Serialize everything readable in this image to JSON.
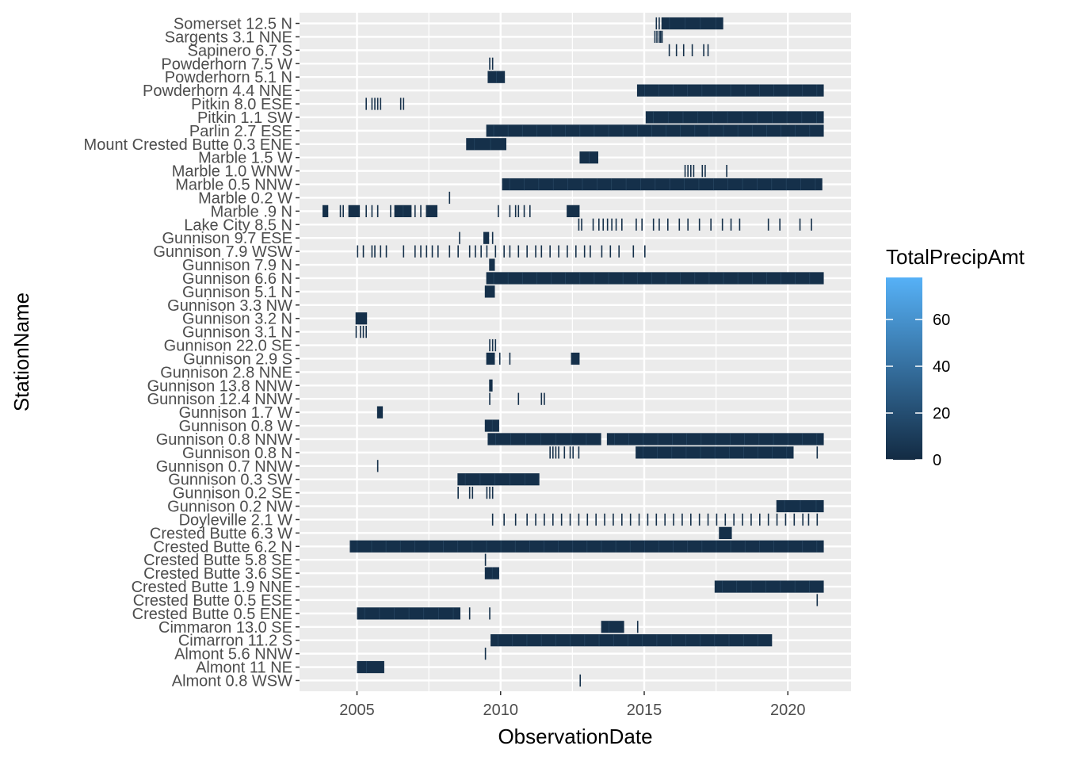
{
  "chart_data": {
    "type": "heatmap",
    "xlabel": "ObservationDate",
    "ylabel": "StationName",
    "xlim": [
      2003.0,
      2022.2
    ],
    "x_ticks": [
      2005,
      2010,
      2015,
      2020
    ],
    "x_tick_labels": [
      "2005",
      "2010",
      "2015",
      "2020"
    ],
    "grid": true,
    "legend": {
      "title": "TotalPrecipAmt",
      "position": "right",
      "range": [
        0,
        78
      ],
      "ticks": [
        0,
        20,
        40,
        60
      ],
      "tick_labels": [
        "0",
        "20",
        "40",
        "60"
      ],
      "color_low": "#132B43",
      "color_high": "#56B1F7"
    },
    "stations": [
      "Somerset 12.5 N",
      "Sargents 3.1 NNE",
      "Sapinero 6.7 S",
      "Powderhorn 7.5 W",
      "Powderhorn 5.1 N",
      "Powderhorn 4.4 NNE",
      "Pitkin 8.0 ESE",
      "Pitkin 1.1 SW",
      "Parlin 2.7 ESE",
      "Mount Crested Butte 0.3 ENE",
      "Marble 1.5 W",
      "Marble 1.0 WNW",
      "Marble 0.5 NNW",
      "Marble 0.2 W",
      "Marble .9 N",
      "Lake City 8.5 N",
      "Gunnison 9.7 ESE",
      "Gunnison 7.9 WSW",
      "Gunnison 7.9 N",
      "Gunnison 6.6 N",
      "Gunnison 5.1 N",
      "Gunnison 3.3 NW",
      "Gunnison 3.2 N",
      "Gunnison 3.1 N",
      "Gunnison 22.0 SE",
      "Gunnison 2.9 S",
      "Gunnison 2.8 NNE",
      "Gunnison 13.8 NNW",
      "Gunnison 12.4 NNW",
      "Gunnison 1.7 W",
      "Gunnison 0.8 W",
      "Gunnison 0.8 NNW",
      "Gunnison 0.8 N",
      "Gunnison 0.7 NNW",
      "Gunnison 0.3 SW",
      "Gunnison 0.2 SE",
      "Gunnison 0.2 NW",
      "Doyleville 2.1 W",
      "Crested Butte 6.3 W",
      "Crested Butte 6.2 N",
      "Crested Butte 5.8 SE",
      "Crested Butte 3.6 SE",
      "Crested Butte 1.9 NNE",
      "Crested Butte 0.5 ESE",
      "Crested Butte 0.5 ENE",
      "Cimmaron 13.0 SE",
      "Cimarron 11.2 S",
      "Almont 5.6 NNW",
      "Almont 11 NE",
      "Almont 0.8 WSW"
    ],
    "records": [
      {
        "station": "Somerset 12.5 N",
        "blocks": [
          [
            2015.6,
            2017.75
          ]
        ],
        "ticks": [
          2015.4,
          2015.5
        ]
      },
      {
        "station": "Sargents 3.1 NNE",
        "blocks": [],
        "ticks": [
          2015.35,
          2015.42,
          2015.5,
          2015.55,
          2015.6
        ]
      },
      {
        "station": "Sapinero 6.7 S",
        "blocks": [],
        "ticks": [
          2015.85,
          2016.1,
          2016.35,
          2016.65,
          2017.05,
          2017.2
        ]
      },
      {
        "station": "Powderhorn 7.5 W",
        "blocks": [],
        "ticks": [
          2009.6,
          2009.7
        ]
      },
      {
        "station": "Powderhorn 5.1 N",
        "blocks": [
          [
            2009.55,
            2010.15
          ]
        ],
        "ticks": []
      },
      {
        "station": "Powderhorn 4.4 NNE",
        "blocks": [
          [
            2014.75,
            2021.25
          ]
        ],
        "ticks": []
      },
      {
        "station": "Pitkin 8.0 ESE",
        "blocks": [],
        "ticks": [
          2005.3,
          2005.5,
          2005.6,
          2005.7,
          2005.8,
          2006.5,
          2006.6
        ]
      },
      {
        "station": "Pitkin 1.1 SW",
        "blocks": [
          [
            2015.05,
            2021.25
          ]
        ],
        "ticks": []
      },
      {
        "station": "Parlin 2.7 ESE",
        "blocks": [
          [
            2009.5,
            2021.25
          ]
        ],
        "ticks": []
      },
      {
        "station": "Mount Crested Butte 0.3 ENE",
        "blocks": [
          [
            2008.8,
            2010.2
          ]
        ],
        "ticks": []
      },
      {
        "station": "Marble 1.5 W",
        "blocks": [
          [
            2012.75,
            2013.4
          ]
        ],
        "ticks": []
      },
      {
        "station": "Marble 1.0 WNW",
        "blocks": [],
        "ticks": [
          2016.4,
          2016.5,
          2016.6,
          2016.7,
          2017.0,
          2017.1,
          2017.85
        ]
      },
      {
        "station": "Marble 0.5 NNW",
        "blocks": [
          [
            2010.05,
            2021.2
          ]
        ],
        "ticks": []
      },
      {
        "station": "Marble 0.2 W",
        "blocks": [],
        "ticks": [
          2008.2
        ]
      },
      {
        "station": "Marble .9 N",
        "blocks": [
          [
            2003.8,
            2004.0
          ],
          [
            2004.7,
            2005.1
          ],
          [
            2006.3,
            2006.9
          ],
          [
            2007.4,
            2007.8
          ],
          [
            2012.3,
            2012.75
          ]
        ],
        "ticks": [
          2004.4,
          2004.5,
          2005.3,
          2005.5,
          2005.7,
          2006.15,
          2007.0,
          2007.2,
          2009.9,
          2010.3,
          2010.5,
          2010.6,
          2010.8,
          2011.0
        ]
      },
      {
        "station": "Lake City 8.5 N",
        "blocks": [],
        "ticks": [
          2012.7,
          2012.8,
          2013.2,
          2013.4,
          2013.55,
          2013.7,
          2013.85,
          2014.0,
          2014.2,
          2014.7,
          2014.9,
          2015.3,
          2015.5,
          2015.8,
          2016.2,
          2016.5,
          2016.9,
          2017.3,
          2017.7,
          2018.0,
          2018.3,
          2019.3,
          2019.7,
          2020.4,
          2020.8
        ]
      },
      {
        "station": "Gunnison 9.7 ESE",
        "blocks": [
          [
            2009.4,
            2009.6
          ]
        ],
        "ticks": [
          2008.55,
          2009.7
        ]
      },
      {
        "station": "Gunnison 7.9 WSW",
        "blocks": [],
        "ticks": [
          2005.0,
          2005.2,
          2005.5,
          2005.6,
          2005.8,
          2006.0,
          2006.6,
          2007.0,
          2007.2,
          2007.4,
          2007.6,
          2007.8,
          2008.2,
          2008.5,
          2008.9,
          2009.1,
          2009.3,
          2009.5,
          2009.8,
          2010.1,
          2010.3,
          2010.6,
          2010.9,
          2011.2,
          2011.4,
          2011.7,
          2012.0,
          2012.3,
          2012.6,
          2012.9,
          2013.1,
          2013.5,
          2013.8,
          2014.1,
          2014.6,
          2015.0
        ]
      },
      {
        "station": "Gunnison 7.9 N",
        "blocks": [
          [
            2009.6,
            2009.8
          ]
        ],
        "ticks": []
      },
      {
        "station": "Gunnison 6.6 N",
        "blocks": [
          [
            2009.5,
            2021.25
          ]
        ],
        "ticks": []
      },
      {
        "station": "Gunnison 5.1 N",
        "blocks": [
          [
            2009.45,
            2009.8
          ]
        ],
        "ticks": []
      },
      {
        "station": "Gunnison 3.3 NW",
        "blocks": [],
        "ticks": []
      },
      {
        "station": "Gunnison 3.2 N",
        "blocks": [
          [
            2004.95,
            2005.35
          ]
        ],
        "ticks": []
      },
      {
        "station": "Gunnison 3.1 N",
        "blocks": [],
        "ticks": [
          2004.95,
          2005.1,
          2005.2,
          2005.3
        ]
      },
      {
        "station": "Gunnison 22.0 SE",
        "blocks": [],
        "ticks": [
          2009.6,
          2009.7,
          2009.8
        ]
      },
      {
        "station": "Gunnison 2.9 S",
        "blocks": [
          [
            2009.5,
            2009.8
          ],
          [
            2012.45,
            2012.75
          ]
        ],
        "ticks": [
          2009.95,
          2010.3
        ]
      },
      {
        "station": "Gunnison 2.8 NNE",
        "blocks": [],
        "ticks": []
      },
      {
        "station": "Gunnison 13.8 NNW",
        "blocks": [
          [
            2009.6,
            2009.72
          ]
        ],
        "ticks": []
      },
      {
        "station": "Gunnison 12.4 NNW",
        "blocks": [],
        "ticks": [
          2009.6,
          2010.6,
          2011.4,
          2011.5
        ]
      },
      {
        "station": "Gunnison 1.7 W",
        "blocks": [
          [
            2005.7,
            2005.9
          ]
        ],
        "ticks": []
      },
      {
        "station": "Gunnison 0.8 W",
        "blocks": [
          [
            2009.45,
            2009.95
          ]
        ],
        "ticks": []
      },
      {
        "station": "Gunnison 0.8 NNW",
        "blocks": [
          [
            2009.55,
            2013.5
          ],
          [
            2013.7,
            2021.25
          ]
        ],
        "ticks": []
      },
      {
        "station": "Gunnison 0.8 N",
        "blocks": [
          [
            2014.7,
            2020.2
          ]
        ],
        "ticks": [
          2011.7,
          2011.8,
          2011.9,
          2012.0,
          2012.2,
          2012.4,
          2012.5,
          2012.7,
          2021.0
        ]
      },
      {
        "station": "Gunnison 0.7 NNW",
        "blocks": [],
        "ticks": [
          2005.7
        ]
      },
      {
        "station": "Gunnison 0.3 SW",
        "blocks": [
          [
            2008.5,
            2011.35
          ]
        ],
        "ticks": []
      },
      {
        "station": "Gunnison 0.2 SE",
        "blocks": [],
        "ticks": [
          2008.5,
          2008.9,
          2009.0,
          2009.5,
          2009.6,
          2009.7
        ]
      },
      {
        "station": "Gunnison 0.2 NW",
        "blocks": [
          [
            2019.6,
            2021.25
          ]
        ],
        "ticks": []
      },
      {
        "station": "Doyleville 2.1 W",
        "blocks": [],
        "ticks": [
          2009.7,
          2010.1,
          2010.5,
          2010.9,
          2011.2,
          2011.5,
          2011.8,
          2012.1,
          2012.4,
          2012.7,
          2013.0,
          2013.3,
          2013.6,
          2013.9,
          2014.2,
          2014.5,
          2014.8,
          2015.1,
          2015.4,
          2015.7,
          2016.0,
          2016.3,
          2016.6,
          2016.9,
          2017.2,
          2017.5,
          2017.8,
          2018.1,
          2018.4,
          2018.7,
          2019.0,
          2019.3,
          2019.6,
          2019.9,
          2020.2,
          2020.5,
          2020.7,
          2021.0
        ]
      },
      {
        "station": "Crested Butte 6.3 W",
        "blocks": [
          [
            2017.6,
            2018.05
          ]
        ],
        "ticks": []
      },
      {
        "station": "Crested Butte 6.2 N",
        "blocks": [
          [
            2004.75,
            2021.25
          ]
        ],
        "ticks": []
      },
      {
        "station": "Crested Butte 5.8 SE",
        "blocks": [],
        "ticks": [
          2009.45
        ]
      },
      {
        "station": "Crested Butte 3.6 SE",
        "blocks": [
          [
            2009.45,
            2009.95
          ]
        ],
        "ticks": []
      },
      {
        "station": "Crested Butte 1.9 NNE",
        "blocks": [
          [
            2017.45,
            2021.25
          ]
        ],
        "ticks": []
      },
      {
        "station": "Crested Butte 0.5 ESE",
        "blocks": [],
        "ticks": [
          2021.0
        ]
      },
      {
        "station": "Crested Butte 0.5 ENE",
        "blocks": [
          [
            2005.0,
            2008.6
          ]
        ],
        "ticks": [
          2008.9,
          2009.6
        ]
      },
      {
        "station": "Cimmaron 13.0 SE",
        "blocks": [
          [
            2013.5,
            2014.3
          ]
        ],
        "ticks": [
          2014.75
        ]
      },
      {
        "station": "Cimarron 11.2 S",
        "blocks": [
          [
            2009.65,
            2019.45
          ]
        ],
        "ticks": []
      },
      {
        "station": "Almont 5.6 NNW",
        "blocks": [],
        "ticks": [
          2009.45
        ]
      },
      {
        "station": "Almont 11 NE",
        "blocks": [
          [
            2005.0,
            2005.95
          ]
        ],
        "ticks": []
      },
      {
        "station": "Almont 0.8 WSW",
        "blocks": [],
        "ticks": [
          2012.75
        ]
      }
    ]
  }
}
